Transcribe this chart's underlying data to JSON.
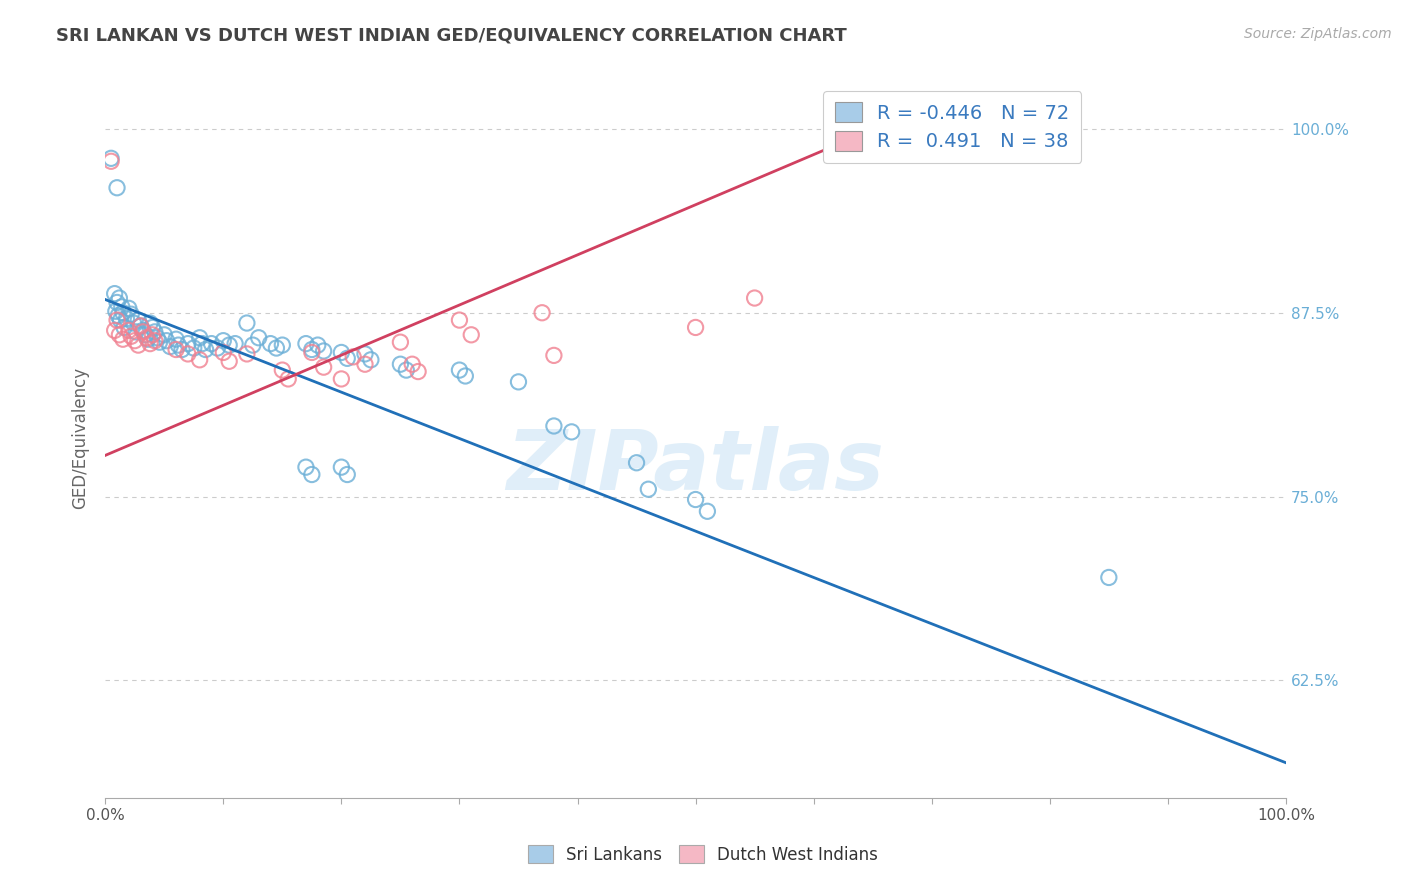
{
  "title": "SRI LANKAN VS DUTCH WEST INDIAN GED/EQUIVALENCY CORRELATION CHART",
  "source": "Source: ZipAtlas.com",
  "ylabel": "GED/Equivalency",
  "ytick_labels": [
    "100.0%",
    "87.5%",
    "75.0%",
    "62.5%"
  ],
  "ytick_values": [
    1.0,
    0.875,
    0.75,
    0.625
  ],
  "xlim": [
    0.0,
    1.0
  ],
  "ylim": [
    0.545,
    1.035
  ],
  "legend_label_sl": "R = -0.446   N = 72",
  "legend_label_dw": "R =  0.491   N = 38",
  "legend_color_sl": "#a8cce8",
  "legend_color_dw": "#f5b8c5",
  "watermark_text": "ZIPatlas",
  "sri_lankan_color": "#6aaed6",
  "dutch_wi_color": "#f08090",
  "sri_lankan_line_color": "#2070b8",
  "dutch_wi_line_color": "#d04060",
  "sri_lankans_label": "Sri Lankans",
  "dutch_wi_label": "Dutch West Indians",
  "background_color": "#ffffff",
  "grid_color": "#cccccc",
  "title_color": "#444444",
  "right_label_color": "#6aaed6",
  "sl_line_x": [
    0.0,
    1.0
  ],
  "sl_line_y": [
    0.884,
    0.569
  ],
  "dw_line_x": [
    0.0,
    0.66
  ],
  "dw_line_y": [
    0.778,
    1.003
  ],
  "sri_lankan_points": [
    [
      0.005,
      0.98
    ],
    [
      0.01,
      0.96
    ],
    [
      0.008,
      0.888
    ],
    [
      0.012,
      0.885
    ],
    [
      0.01,
      0.882
    ],
    [
      0.014,
      0.879
    ],
    [
      0.009,
      0.876
    ],
    [
      0.011,
      0.873
    ],
    [
      0.013,
      0.87
    ],
    [
      0.015,
      0.875
    ],
    [
      0.02,
      0.878
    ],
    [
      0.022,
      0.874
    ],
    [
      0.018,
      0.871
    ],
    [
      0.024,
      0.868
    ],
    [
      0.016,
      0.865
    ],
    [
      0.026,
      0.862
    ],
    [
      0.028,
      0.87
    ],
    [
      0.03,
      0.866
    ],
    [
      0.032,
      0.863
    ],
    [
      0.034,
      0.86
    ],
    [
      0.036,
      0.857
    ],
    [
      0.038,
      0.868
    ],
    [
      0.04,
      0.865
    ],
    [
      0.042,
      0.862
    ],
    [
      0.044,
      0.858
    ],
    [
      0.046,
      0.855
    ],
    [
      0.05,
      0.86
    ],
    [
      0.052,
      0.856
    ],
    [
      0.055,
      0.852
    ],
    [
      0.06,
      0.857
    ],
    [
      0.062,
      0.853
    ],
    [
      0.065,
      0.85
    ],
    [
      0.07,
      0.854
    ],
    [
      0.075,
      0.851
    ],
    [
      0.08,
      0.858
    ],
    [
      0.082,
      0.854
    ],
    [
      0.085,
      0.85
    ],
    [
      0.09,
      0.854
    ],
    [
      0.095,
      0.851
    ],
    [
      0.1,
      0.856
    ],
    [
      0.105,
      0.853
    ],
    [
      0.11,
      0.854
    ],
    [
      0.12,
      0.868
    ],
    [
      0.125,
      0.853
    ],
    [
      0.13,
      0.858
    ],
    [
      0.14,
      0.854
    ],
    [
      0.145,
      0.851
    ],
    [
      0.15,
      0.853
    ],
    [
      0.17,
      0.854
    ],
    [
      0.175,
      0.85
    ],
    [
      0.18,
      0.853
    ],
    [
      0.185,
      0.849
    ],
    [
      0.2,
      0.848
    ],
    [
      0.205,
      0.844
    ],
    [
      0.22,
      0.847
    ],
    [
      0.225,
      0.843
    ],
    [
      0.25,
      0.84
    ],
    [
      0.255,
      0.836
    ],
    [
      0.3,
      0.836
    ],
    [
      0.305,
      0.832
    ],
    [
      0.17,
      0.77
    ],
    [
      0.175,
      0.765
    ],
    [
      0.2,
      0.77
    ],
    [
      0.205,
      0.765
    ],
    [
      0.35,
      0.828
    ],
    [
      0.38,
      0.798
    ],
    [
      0.395,
      0.794
    ],
    [
      0.45,
      0.773
    ],
    [
      0.46,
      0.755
    ],
    [
      0.5,
      0.748
    ],
    [
      0.51,
      0.74
    ],
    [
      0.85,
      0.695
    ]
  ],
  "dutch_wi_points": [
    [
      0.005,
      0.978
    ],
    [
      0.01,
      0.87
    ],
    [
      0.008,
      0.863
    ],
    [
      0.012,
      0.86
    ],
    [
      0.015,
      0.857
    ],
    [
      0.02,
      0.863
    ],
    [
      0.022,
      0.859
    ],
    [
      0.025,
      0.856
    ],
    [
      0.028,
      0.853
    ],
    [
      0.03,
      0.866
    ],
    [
      0.032,
      0.862
    ],
    [
      0.035,
      0.858
    ],
    [
      0.038,
      0.854
    ],
    [
      0.04,
      0.86
    ],
    [
      0.042,
      0.856
    ],
    [
      0.06,
      0.85
    ],
    [
      0.07,
      0.847
    ],
    [
      0.08,
      0.843
    ],
    [
      0.1,
      0.848
    ],
    [
      0.105,
      0.842
    ],
    [
      0.12,
      0.847
    ],
    [
      0.15,
      0.836
    ],
    [
      0.155,
      0.83
    ],
    [
      0.175,
      0.848
    ],
    [
      0.185,
      0.838
    ],
    [
      0.2,
      0.83
    ],
    [
      0.21,
      0.845
    ],
    [
      0.22,
      0.84
    ],
    [
      0.25,
      0.855
    ],
    [
      0.26,
      0.84
    ],
    [
      0.265,
      0.835
    ],
    [
      0.3,
      0.87
    ],
    [
      0.31,
      0.86
    ],
    [
      0.37,
      0.875
    ],
    [
      0.38,
      0.846
    ],
    [
      0.5,
      0.865
    ],
    [
      0.55,
      0.885
    ],
    [
      0.66,
      1.0
    ]
  ]
}
